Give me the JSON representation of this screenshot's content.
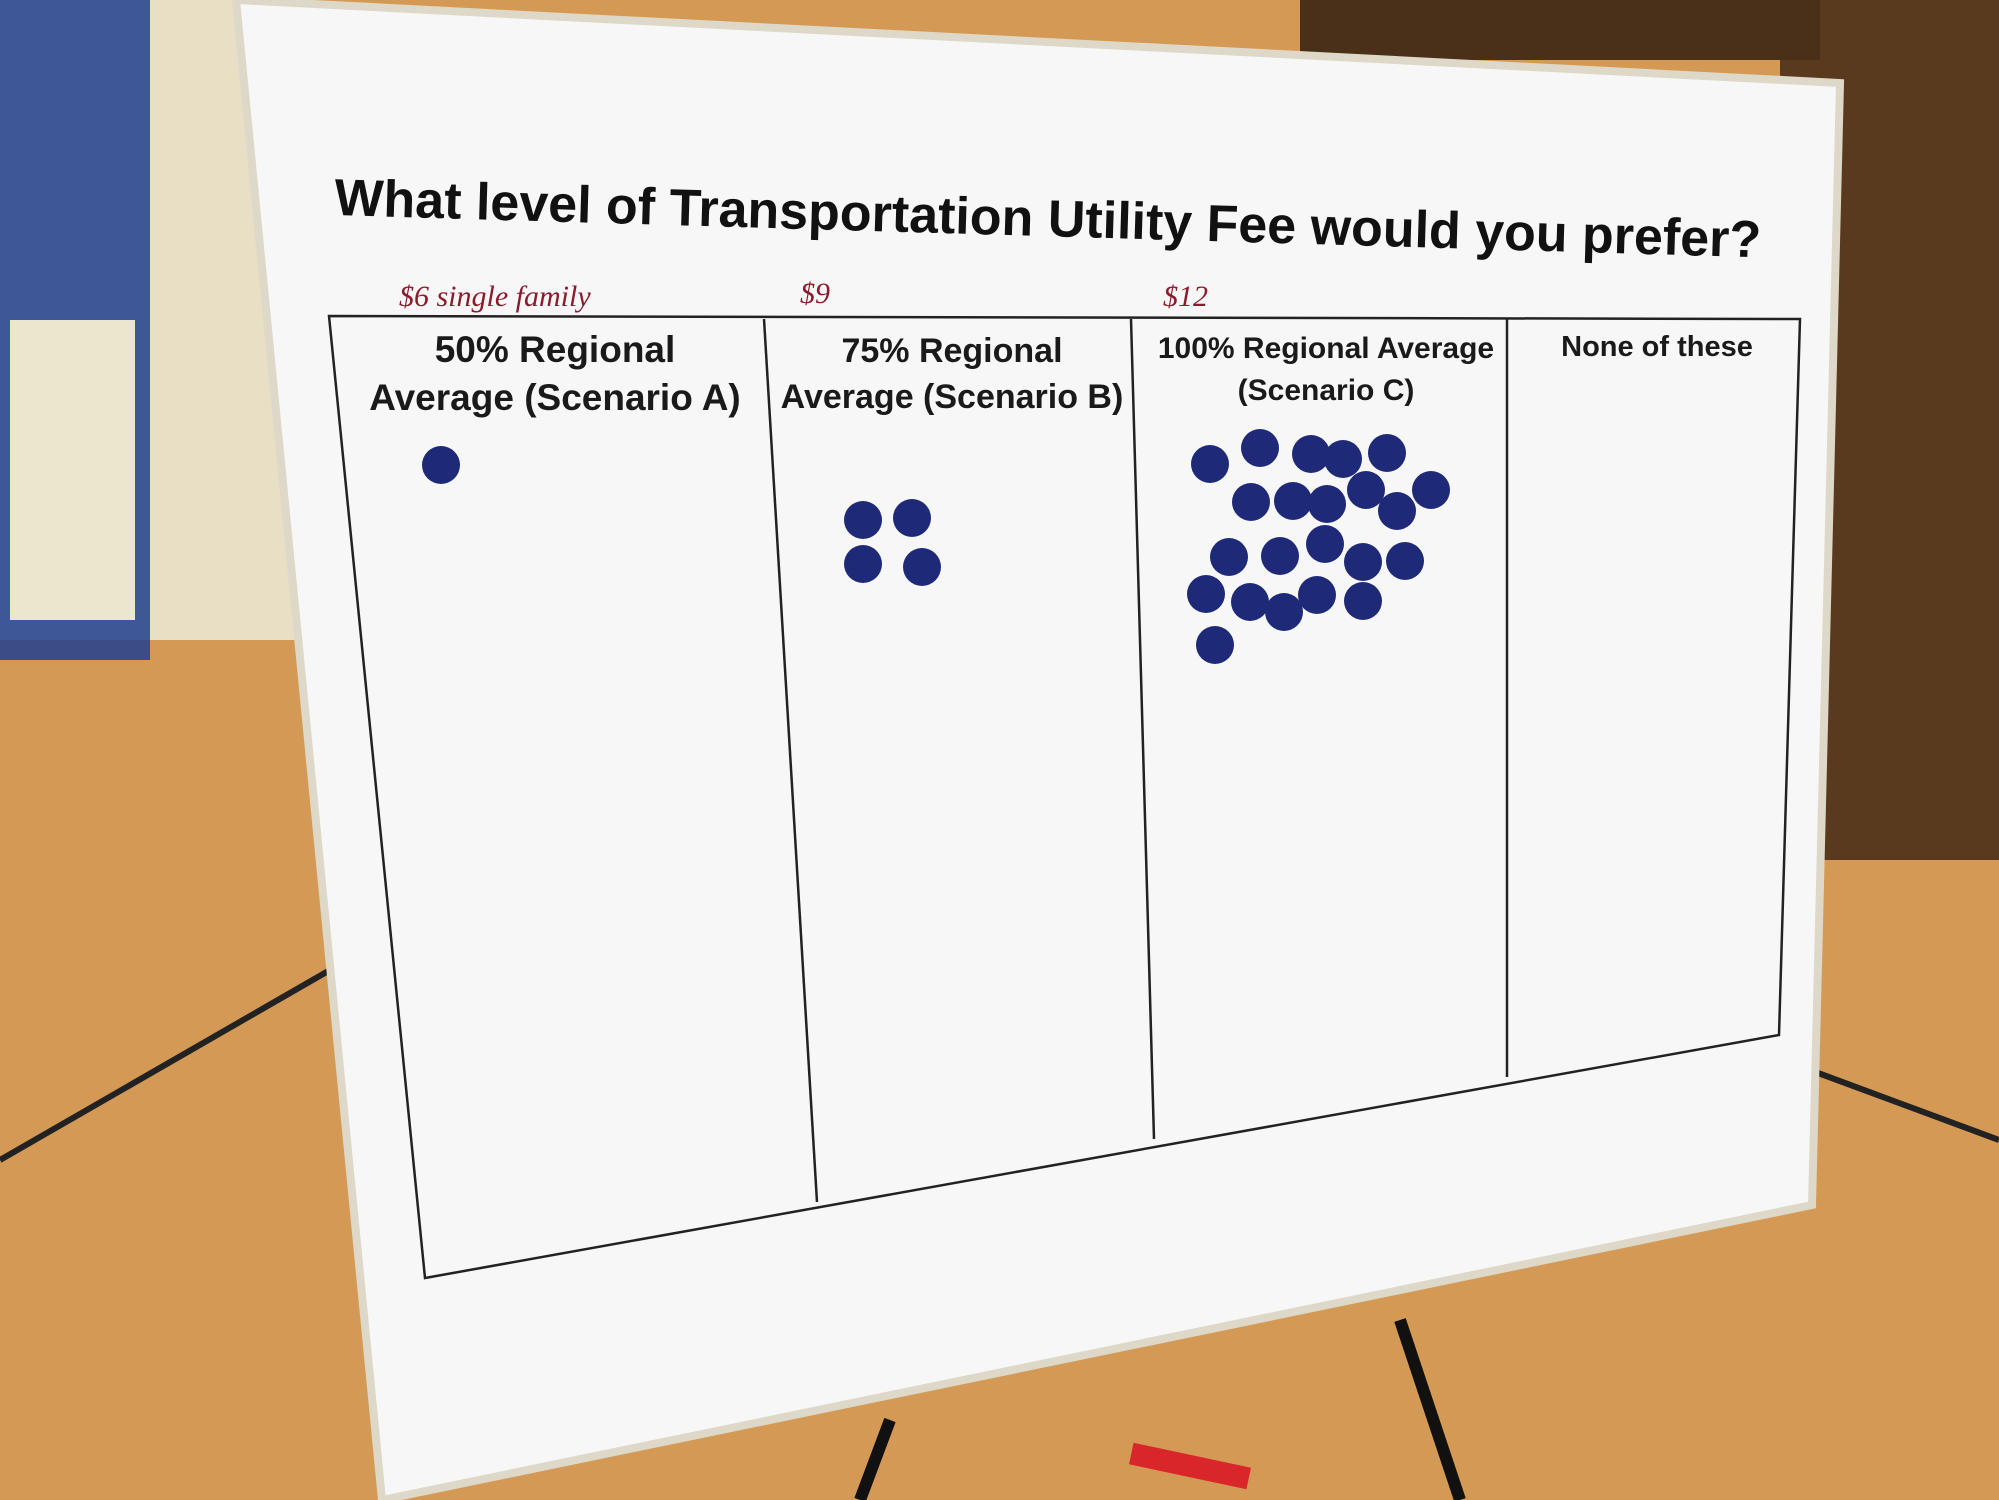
{
  "poster": {
    "title": "What level of Transportation Utility Fee would you prefer?",
    "columns": [
      {
        "note": "$6 single family",
        "header_lines": [
          "50% Regional",
          "Average (Scenario A)"
        ],
        "votes": 1
      },
      {
        "note": "$9",
        "header_lines": [
          "75%  Regional",
          "Average  (Scenario B)"
        ],
        "votes": 4
      },
      {
        "note": "$12",
        "header_lines": [
          "100% Regional Average",
          "(Scenario C)"
        ],
        "votes": 22
      },
      {
        "header_lines": [
          "None of these"
        ],
        "votes": 0
      }
    ]
  }
}
